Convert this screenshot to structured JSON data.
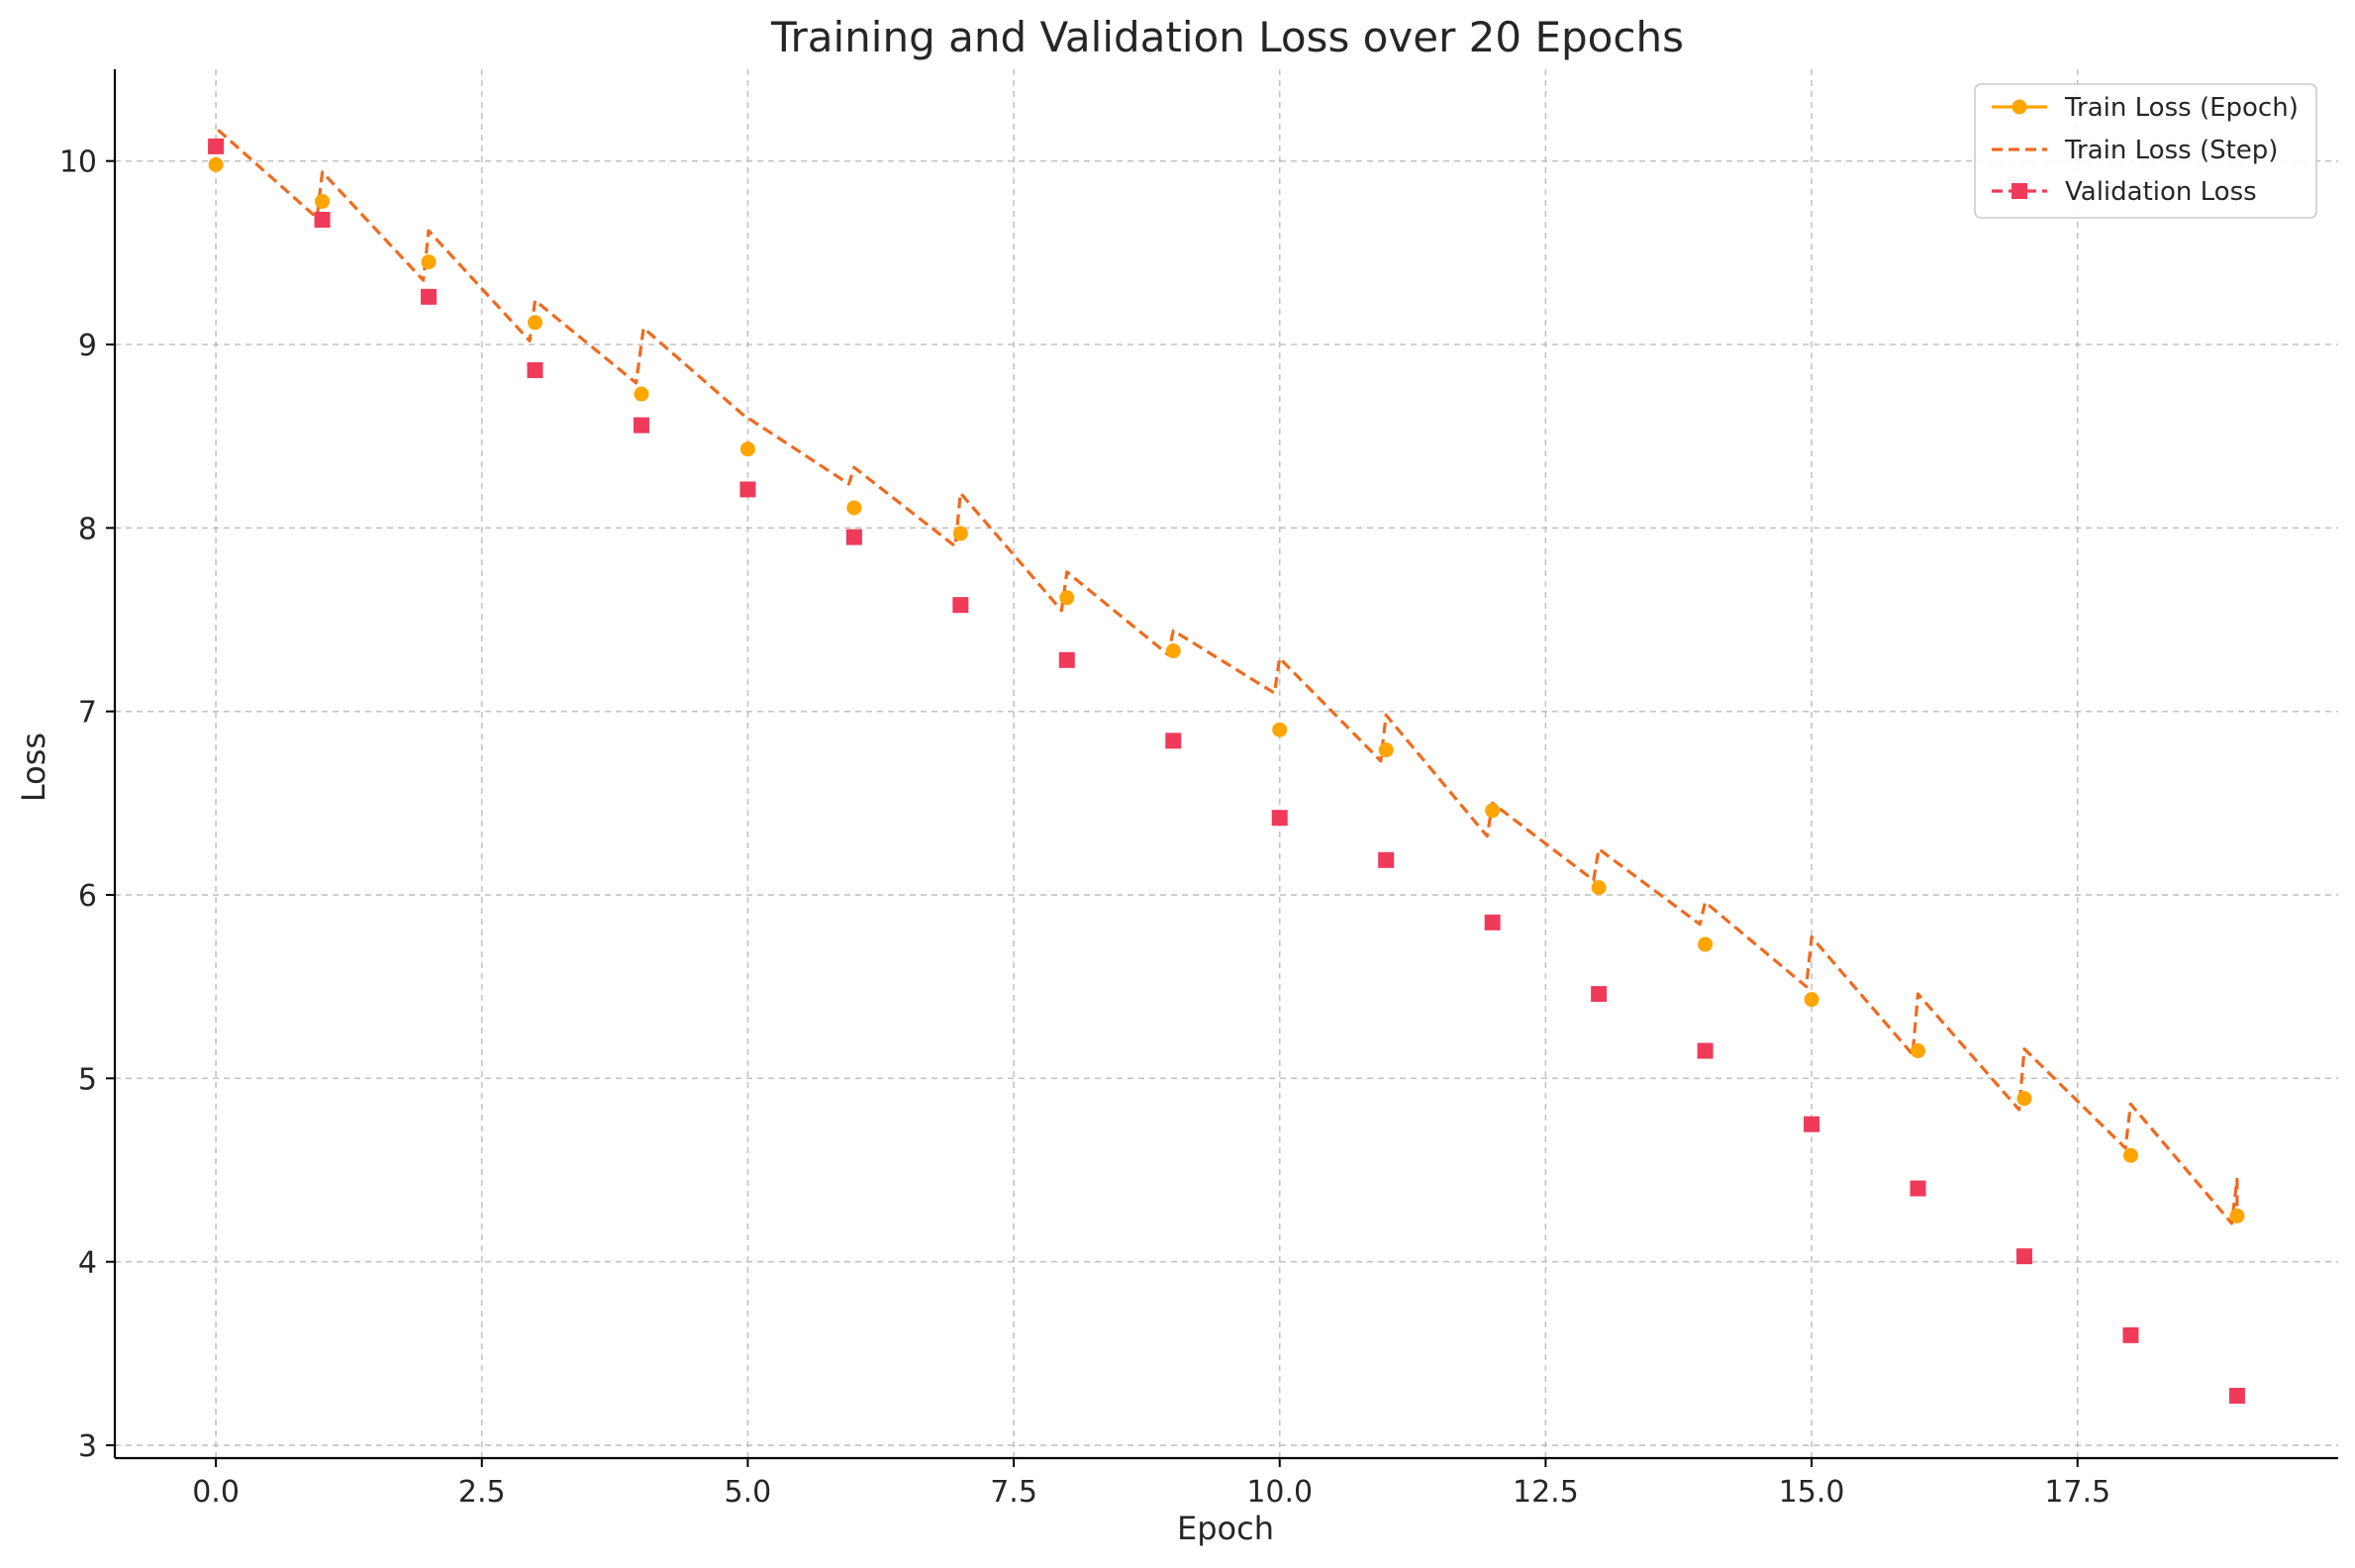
{
  "chart_data": {
    "type": "line",
    "title": "Training and Validation Loss over 20 Epochs",
    "xlabel": "Epoch",
    "ylabel": "Loss",
    "xlim": [
      -0.95,
      19.95
    ],
    "ylim": [
      2.93,
      10.5
    ],
    "xticks": [
      0.0,
      2.5,
      5.0,
      7.5,
      10.0,
      12.5,
      15.0,
      17.5
    ],
    "xtick_labels": [
      "0.0",
      "2.5",
      "5.0",
      "7.5",
      "10.0",
      "12.5",
      "15.0",
      "17.5"
    ],
    "yticks": [
      3,
      4,
      5,
      6,
      7,
      8,
      9,
      10
    ],
    "ytick_labels": [
      "3",
      "4",
      "5",
      "6",
      "7",
      "8",
      "9",
      "10"
    ],
    "grid": true,
    "legend_position": "top-right",
    "series": [
      {
        "name": "Train Loss (Epoch)",
        "style": "points",
        "marker": "circle",
        "color": "#FFA500",
        "x": [
          0,
          1,
          2,
          3,
          4,
          5,
          6,
          7,
          8,
          9,
          10,
          11,
          12,
          13,
          14,
          15,
          16,
          17,
          18,
          19
        ],
        "y": [
          9.98,
          9.78,
          9.45,
          9.12,
          8.73,
          8.43,
          8.11,
          7.97,
          7.62,
          7.33,
          6.9,
          6.79,
          6.46,
          6.04,
          5.73,
          5.43,
          5.15,
          4.89,
          4.58,
          4.25
        ]
      },
      {
        "name": "Train Loss (Step)",
        "style": "dashed-line",
        "color": "#F06A1E",
        "segments": [
          {
            "x": [
              0.02,
              0.95
            ],
            "y": [
              10.17,
              9.69
            ]
          },
          {
            "x": [
              1.0,
              1.95
            ],
            "y": [
              9.94,
              9.35
            ]
          },
          {
            "x": [
              2.0,
              2.95
            ],
            "y": [
              9.62,
              9.02
            ]
          },
          {
            "x": [
              3.0,
              3.95
            ],
            "y": [
              9.24,
              8.79
            ]
          },
          {
            "x": [
              4.02,
              4.95
            ],
            "y": [
              9.09,
              8.62
            ]
          },
          {
            "x": [
              5.0,
              5.95
            ],
            "y": [
              8.6,
              8.24
            ]
          },
          {
            "x": [
              6.0,
              6.95
            ],
            "y": [
              8.33,
              7.9
            ]
          },
          {
            "x": [
              7.0,
              7.95
            ],
            "y": [
              8.19,
              7.55
            ]
          },
          {
            "x": [
              8.0,
              8.95
            ],
            "y": [
              7.76,
              7.31
            ]
          },
          {
            "x": [
              9.0,
              9.95
            ],
            "y": [
              7.44,
              7.1
            ]
          },
          {
            "x": [
              10.0,
              10.95
            ],
            "y": [
              7.29,
              6.73
            ]
          },
          {
            "x": [
              11.0,
              11.95
            ],
            "y": [
              6.98,
              6.32
            ]
          },
          {
            "x": [
              12.0,
              12.95
            ],
            "y": [
              6.5,
              6.08
            ]
          },
          {
            "x": [
              13.0,
              13.95
            ],
            "y": [
              6.25,
              5.84
            ]
          },
          {
            "x": [
              14.0,
              14.95
            ],
            "y": [
              5.96,
              5.5
            ]
          },
          {
            "x": [
              15.0,
              15.95
            ],
            "y": [
              5.77,
              5.13
            ]
          },
          {
            "x": [
              16.0,
              16.95
            ],
            "y": [
              5.46,
              4.83
            ]
          },
          {
            "x": [
              17.0,
              17.95
            ],
            "y": [
              5.16,
              4.62
            ]
          },
          {
            "x": [
              18.0,
              18.95
            ],
            "y": [
              4.86,
              4.21
            ]
          },
          {
            "x": [
              19.0,
              19.0
            ],
            "y": [
              4.45,
              4.28
            ]
          }
        ]
      },
      {
        "name": "Validation Loss",
        "style": "points",
        "marker": "square",
        "color": "#F03A5A",
        "x": [
          0,
          1,
          2,
          3,
          4,
          5,
          6,
          7,
          8,
          9,
          10,
          11,
          12,
          13,
          14,
          15,
          16,
          17,
          18,
          19
        ],
        "y": [
          10.08,
          9.68,
          9.26,
          8.86,
          8.56,
          8.21,
          7.95,
          7.58,
          7.28,
          6.84,
          6.42,
          6.19,
          5.85,
          5.46,
          5.15,
          4.75,
          4.4,
          4.03,
          3.6,
          3.27
        ]
      }
    ]
  }
}
